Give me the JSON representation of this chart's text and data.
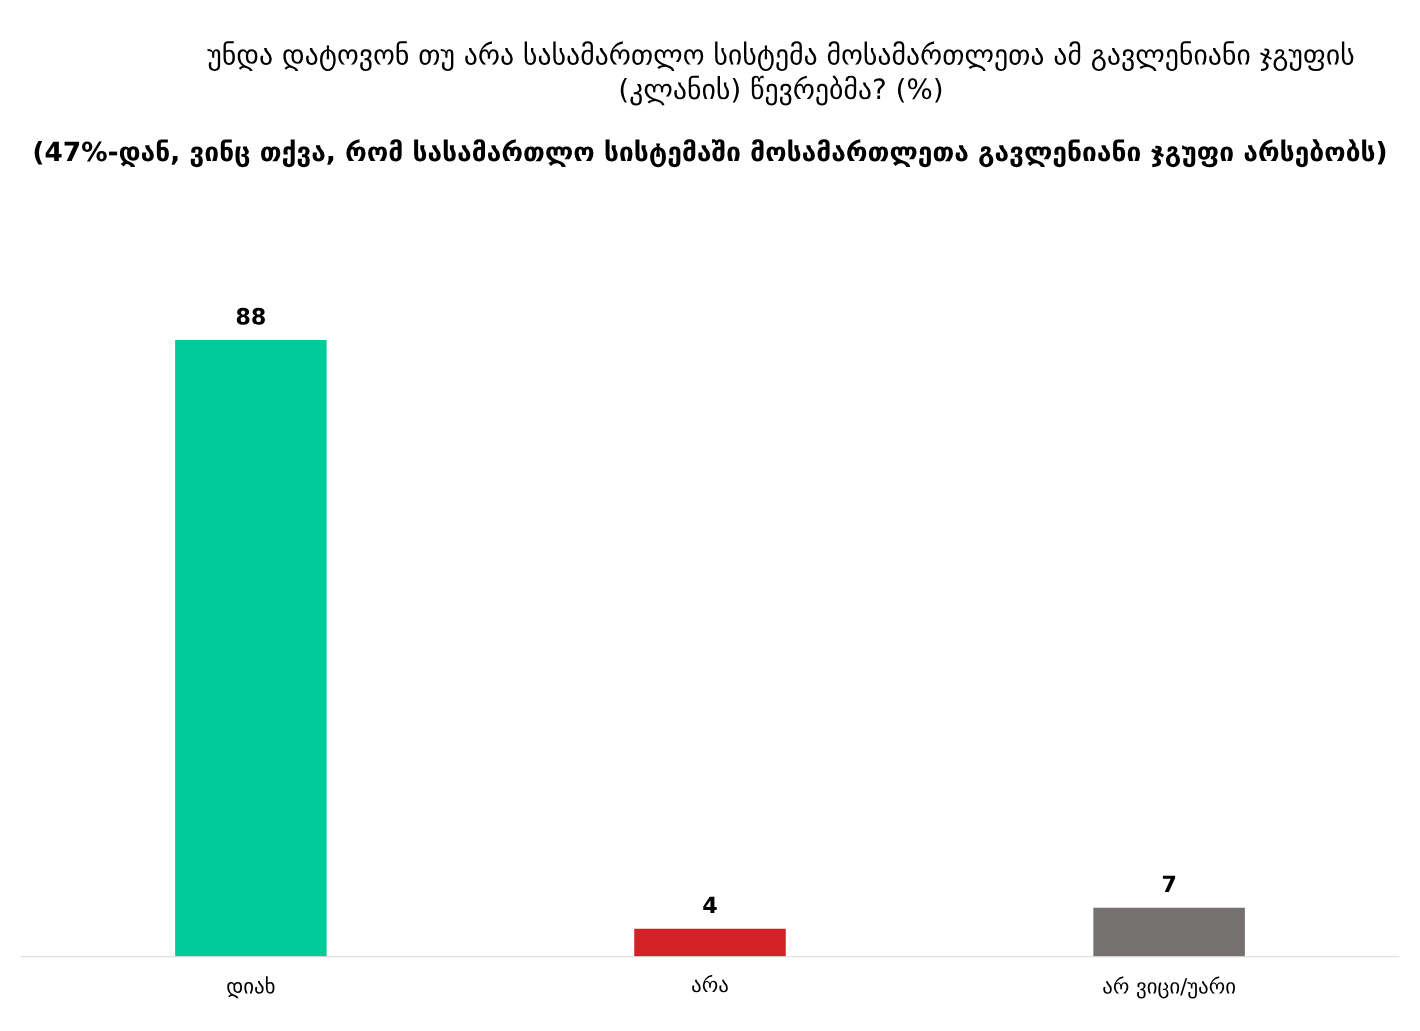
{
  "chart_data": {
    "type": "bar",
    "title": "უნდა დატოვონ თუ არა სასამართლო სისტემა მოსამართლეთა ამ გავლენიანი ჯგუფის (კლანის) წევრებმა? (%)",
    "subtitle": "(47%-დან, ვინც თქვა, რომ სასამართლო სისტემაში მოსამართლეთა გავლენიანი ჯგუფი არსებობს)",
    "categories": [
      "დიახ",
      "არა",
      "არ ვიცი/უარი"
    ],
    "values": [
      88,
      4,
      7
    ],
    "colors": [
      "#00cc99",
      "#d42027",
      "#767171"
    ],
    "data_labels": true
  }
}
